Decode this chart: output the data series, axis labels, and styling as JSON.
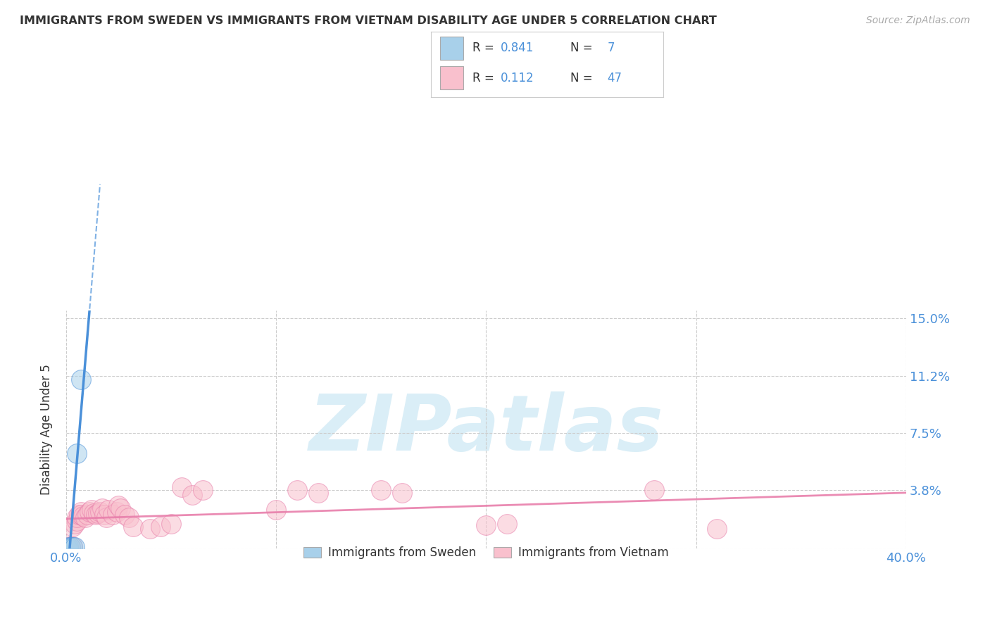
{
  "title": "IMMIGRANTS FROM SWEDEN VS IMMIGRANTS FROM VIETNAM DISABILITY AGE UNDER 5 CORRELATION CHART",
  "source": "Source: ZipAtlas.com",
  "xlabel_ticks": [
    "0.0%",
    "",
    "",
    "",
    "40.0%"
  ],
  "xlabel_tick_vals": [
    0.0,
    0.1,
    0.2,
    0.3,
    0.4
  ],
  "ylabel": "Disability Age Under 5",
  "ylabel_ticks": [
    "15.0%",
    "11.2%",
    "7.5%",
    "3.8%",
    ""
  ],
  "ylabel_tick_vals": [
    0.15,
    0.112,
    0.075,
    0.038,
    0.0
  ],
  "xlim": [
    0.0,
    0.4
  ],
  "ylim": [
    0.0,
    0.155
  ],
  "sweden_R": 0.841,
  "sweden_N": 7,
  "vietnam_R": 0.112,
  "vietnam_N": 47,
  "sweden_color": "#a8d0ea",
  "vietnam_color": "#f9c0cd",
  "sweden_line_color": "#4a90d9",
  "vietnam_line_color": "#e87fab",
  "sweden_x": [
    0.0005,
    0.001,
    0.002,
    0.003,
    0.004,
    0.005,
    0.007
  ],
  "sweden_y": [
    0.0005,
    0.0008,
    0.001,
    0.001,
    0.001,
    0.062,
    0.11
  ],
  "vietnam_x": [
    0.001,
    0.001,
    0.002,
    0.002,
    0.003,
    0.003,
    0.004,
    0.005,
    0.005,
    0.006,
    0.007,
    0.007,
    0.008,
    0.009,
    0.01,
    0.011,
    0.012,
    0.013,
    0.014,
    0.015,
    0.016,
    0.017,
    0.018,
    0.019,
    0.02,
    0.022,
    0.024,
    0.025,
    0.026,
    0.028,
    0.03,
    0.032,
    0.04,
    0.045,
    0.05,
    0.055,
    0.06,
    0.065,
    0.1,
    0.11,
    0.12,
    0.15,
    0.16,
    0.2,
    0.21,
    0.28,
    0.31
  ],
  "vietnam_y": [
    0.001,
    0.0015,
    0.0008,
    0.001,
    0.0012,
    0.014,
    0.016,
    0.018,
    0.02,
    0.022,
    0.024,
    0.022,
    0.021,
    0.02,
    0.022,
    0.024,
    0.025,
    0.023,
    0.022,
    0.023,
    0.024,
    0.026,
    0.022,
    0.02,
    0.025,
    0.022,
    0.024,
    0.028,
    0.026,
    0.022,
    0.02,
    0.014,
    0.013,
    0.014,
    0.016,
    0.04,
    0.035,
    0.038,
    0.025,
    0.038,
    0.036,
    0.038,
    0.036,
    0.015,
    0.016,
    0.038,
    0.013
  ],
  "background_color": "#ffffff",
  "grid_color": "#cccccc",
  "watermark_text": "ZIPatlas",
  "watermark_color": "#daeef7",
  "legend_sweden_text_black": "R =  ",
  "legend_sweden_R": "0.841",
  "legend_sweden_N_text": "  N =  ",
  "legend_sweden_N": "7",
  "legend_vietnam_text_black": "R =  ",
  "legend_vietnam_R": "0.112",
  "legend_vietnam_N_text": "  N = ",
  "legend_vietnam_N": "47",
  "text_color": "#333333",
  "blue_color": "#4a90d9"
}
